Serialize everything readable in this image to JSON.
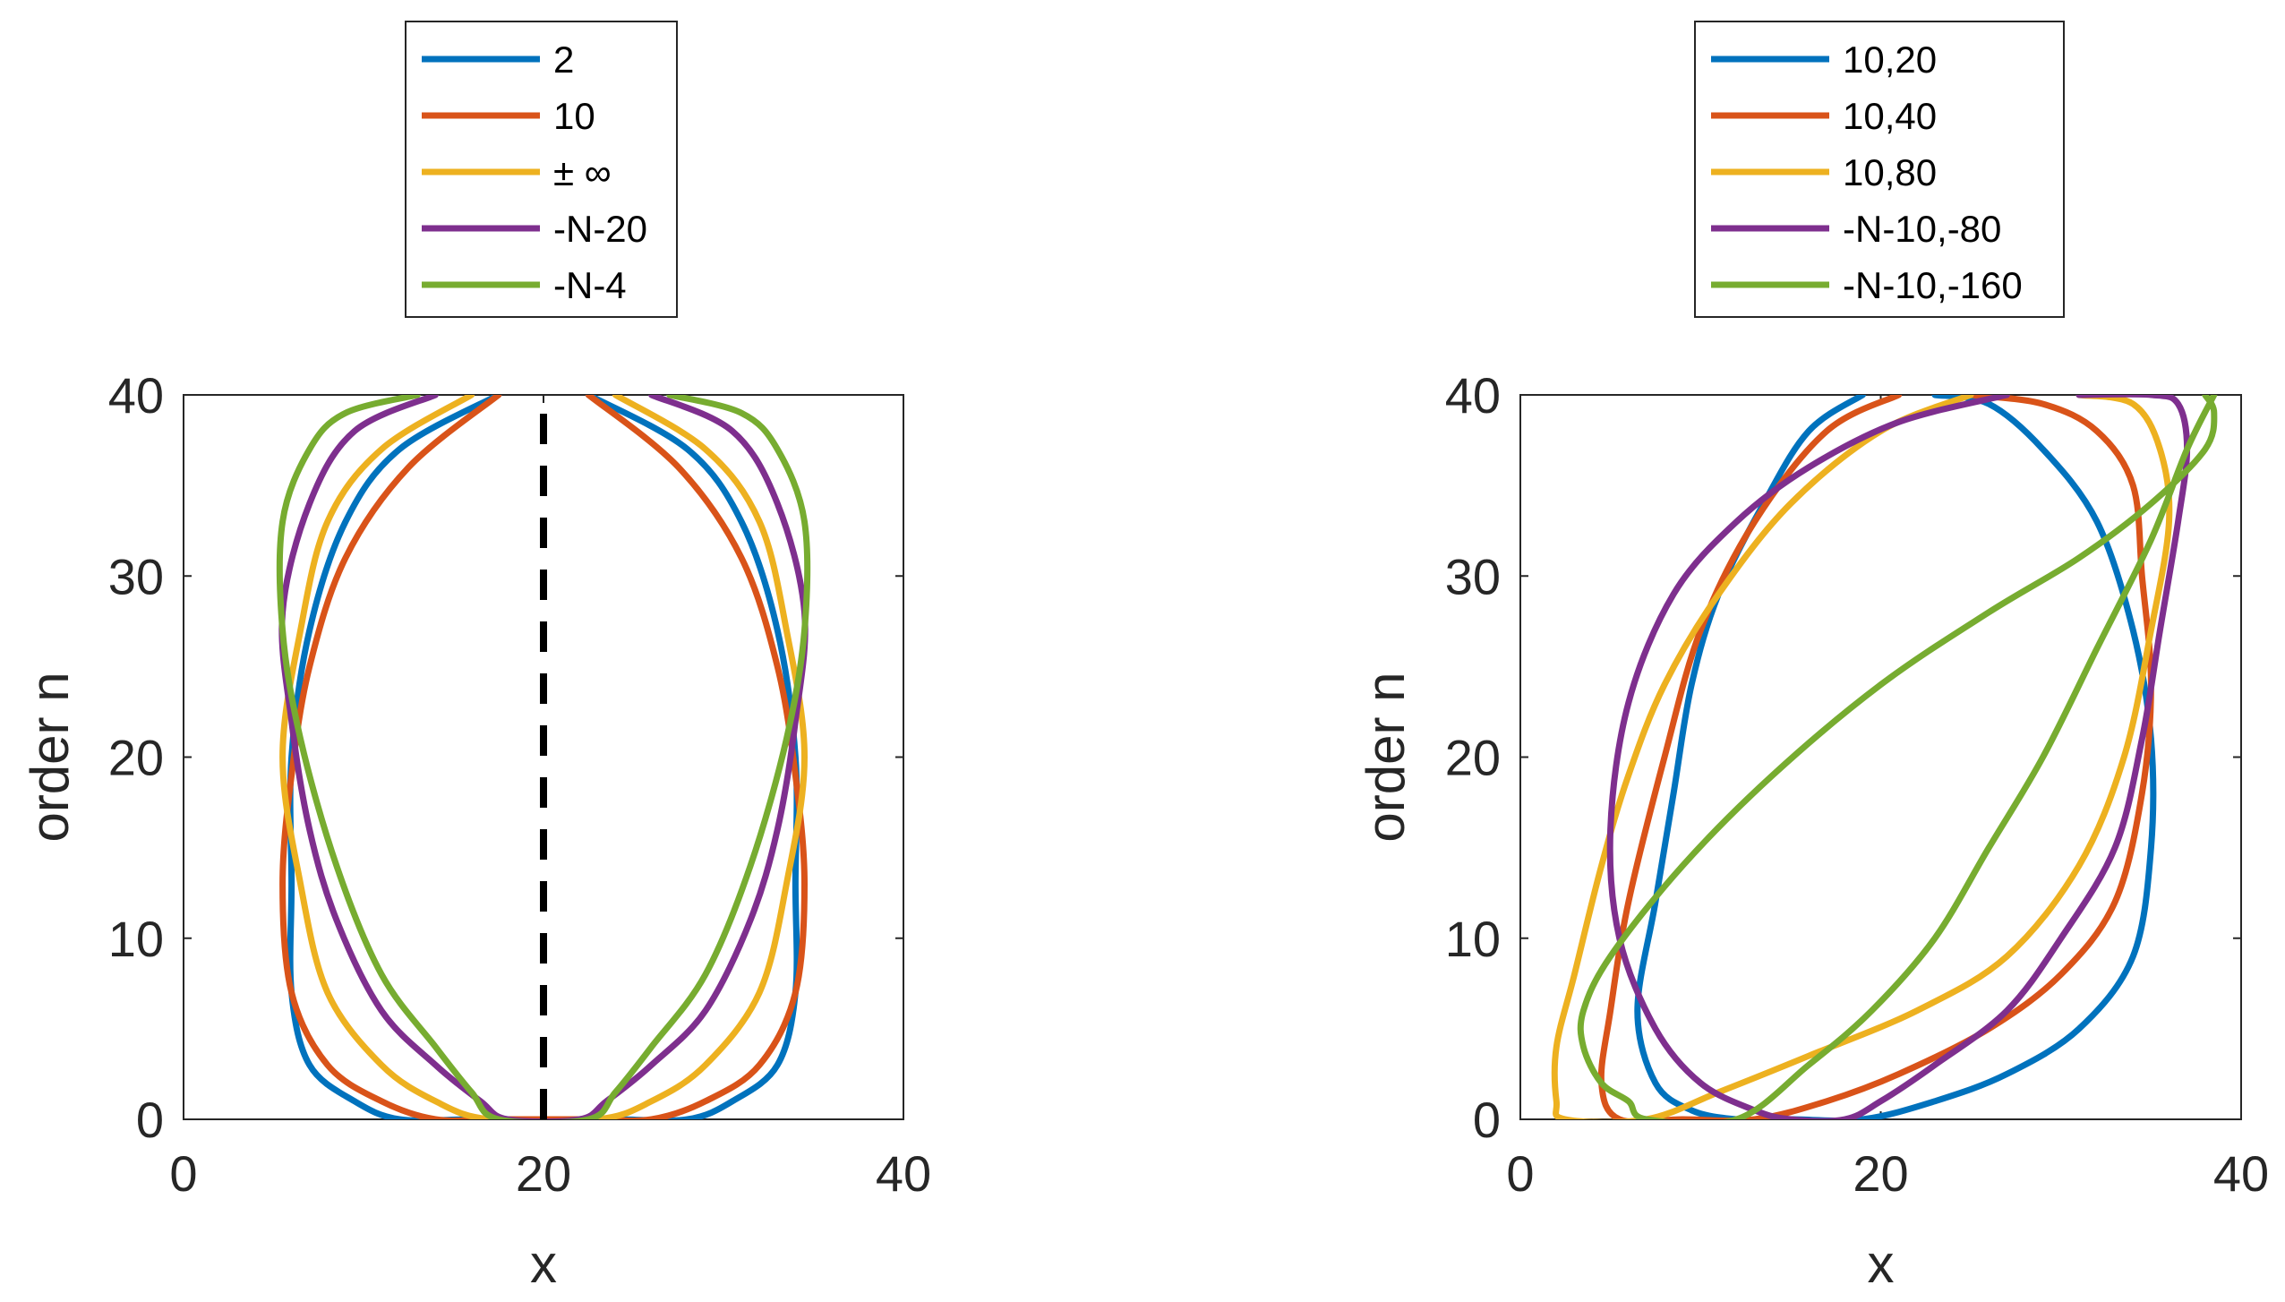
{
  "chart_data": [
    {
      "type": "line",
      "title": "",
      "xlabel": "x",
      "ylabel": "order n",
      "xlim": [
        0,
        40
      ],
      "ylim": [
        0,
        40
      ],
      "xticks": [
        "0",
        "20",
        "40"
      ],
      "yticks": [
        "0",
        "10",
        "20",
        "30",
        "40"
      ],
      "legend_position": "top-outside",
      "reference_line": {
        "style": "dashed",
        "color": "#000000",
        "x": [
          20,
          20
        ],
        "y": [
          0,
          40
        ]
      },
      "series": [
        {
          "name": "2",
          "color": "#0072BD",
          "points": [
            [
              17.5,
              40
            ],
            [
              12,
              37
            ],
            [
              9,
              33
            ],
            [
              7,
              27
            ],
            [
              6,
              20
            ],
            [
              6,
              13
            ],
            [
              6,
              7
            ],
            [
              7,
              3
            ],
            [
              9.5,
              1
            ],
            [
              12,
              0
            ],
            [
              16,
              0
            ],
            [
              20,
              0
            ],
            [
              24,
              0
            ],
            [
              28,
              0
            ],
            [
              30.5,
              1
            ],
            [
              33,
              3
            ],
            [
              34,
              7
            ],
            [
              34,
              13
            ],
            [
              34,
              20
            ],
            [
              33,
              27
            ],
            [
              31,
              33
            ],
            [
              28,
              37
            ],
            [
              22.5,
              40
            ]
          ]
        },
        {
          "name": "10",
          "color": "#D95319",
          "points": [
            [
              17.5,
              40
            ],
            [
              12.5,
              36
            ],
            [
              9,
              31
            ],
            [
              7,
              25
            ],
            [
              6,
              19
            ],
            [
              5.5,
              13
            ],
            [
              6,
              7
            ],
            [
              8,
              3
            ],
            [
              11,
              1
            ],
            [
              14,
              0
            ],
            [
              17.5,
              0
            ],
            [
              22.5,
              0
            ],
            [
              26,
              0
            ],
            [
              29,
              1
            ],
            [
              32,
              3
            ],
            [
              34,
              7
            ],
            [
              34.5,
              13
            ],
            [
              34,
              19
            ],
            [
              33,
              25
            ],
            [
              31,
              31
            ],
            [
              27.5,
              36
            ],
            [
              22.5,
              40
            ]
          ]
        },
        {
          "name": "± ∞",
          "color": "#EDB120",
          "points": [
            [
              16,
              40
            ],
            [
              11,
              37
            ],
            [
              8,
              33
            ],
            [
              6.5,
              27
            ],
            [
              5.5,
              20
            ],
            [
              6.5,
              13
            ],
            [
              8,
              7
            ],
            [
              11,
              3
            ],
            [
              14,
              1
            ],
            [
              17,
              0
            ],
            [
              23,
              0
            ],
            [
              26,
              1
            ],
            [
              29,
              3
            ],
            [
              32,
              7
            ],
            [
              33.5,
              13
            ],
            [
              34.5,
              20
            ],
            [
              33.5,
              27
            ],
            [
              32,
              33
            ],
            [
              29,
              37
            ],
            [
              24,
              40
            ]
          ]
        },
        {
          "name": "-N-20",
          "color": "#7E2F8E",
          "points": [
            [
              14,
              40
            ],
            [
              9.5,
              38
            ],
            [
              7,
              34
            ],
            [
              5.5,
              28
            ],
            [
              6,
              22
            ],
            [
              7,
              16
            ],
            [
              8.5,
              11
            ],
            [
              11,
              6
            ],
            [
              14,
              3
            ],
            [
              16.5,
              1
            ],
            [
              18,
              0
            ],
            [
              22,
              0
            ],
            [
              23.5,
              1
            ],
            [
              26,
              3
            ],
            [
              29,
              6
            ],
            [
              31.5,
              11
            ],
            [
              33,
              16
            ],
            [
              34,
              22
            ],
            [
              34.5,
              28
            ],
            [
              33,
              34
            ],
            [
              30.5,
              38
            ],
            [
              26,
              40
            ]
          ]
        },
        {
          "name": "-N-4",
          "color": "#77AC30",
          "points": [
            [
              13,
              40
            ],
            [
              9,
              39
            ],
            [
              7,
              37
            ],
            [
              5.5,
              33
            ],
            [
              5.5,
              27
            ],
            [
              6.5,
              21
            ],
            [
              8.5,
              14
            ],
            [
              11,
              8
            ],
            [
              14,
              4
            ],
            [
              16,
              1.5
            ],
            [
              17.5,
              0
            ],
            [
              22.5,
              0
            ],
            [
              24,
              1.5
            ],
            [
              26,
              4
            ],
            [
              29,
              8
            ],
            [
              31.5,
              14
            ],
            [
              33.5,
              21
            ],
            [
              34.5,
              27
            ],
            [
              34.5,
              33
            ],
            [
              33,
              37
            ],
            [
              31,
              39
            ],
            [
              27,
              40
            ]
          ]
        }
      ]
    },
    {
      "type": "line",
      "title": "",
      "xlabel": "x",
      "ylabel": "order n",
      "xlim": [
        0,
        40
      ],
      "ylim": [
        0,
        40
      ],
      "xticks": [
        "0",
        "20",
        "40"
      ],
      "yticks": [
        "0",
        "10",
        "20",
        "30",
        "40"
      ],
      "legend_position": "top-outside",
      "series": [
        {
          "name": "10,20",
          "color": "#0072BD",
          "points": [
            [
              19,
              40
            ],
            [
              16,
              38
            ],
            [
              13.5,
              34
            ],
            [
              11,
              29
            ],
            [
              9.5,
              24
            ],
            [
              8.5,
              18
            ],
            [
              7.5,
              12
            ],
            [
              6.5,
              6
            ],
            [
              7.5,
              2
            ],
            [
              9.5,
              0.5
            ],
            [
              12,
              0
            ],
            [
              15,
              0
            ],
            [
              19,
              0
            ],
            [
              23,
              1
            ],
            [
              27,
              2.5
            ],
            [
              31,
              5
            ],
            [
              34,
              9
            ],
            [
              35,
              15
            ],
            [
              35,
              21
            ],
            [
              34,
              27
            ],
            [
              32,
              33
            ],
            [
              29,
              37
            ],
            [
              26,
              39.5
            ],
            [
              23,
              40
            ]
          ]
        },
        {
          "name": "10,40",
          "color": "#D95319",
          "points": [
            [
              21,
              40
            ],
            [
              17,
              38
            ],
            [
              13,
              33
            ],
            [
              10,
              27
            ],
            [
              8,
              20
            ],
            [
              6,
              12
            ],
            [
              5,
              6
            ],
            [
              4.5,
              2
            ],
            [
              5.5,
              0
            ],
            [
              9,
              0
            ],
            [
              13,
              0
            ],
            [
              17,
              1
            ],
            [
              21,
              2.5
            ],
            [
              26,
              5
            ],
            [
              30,
              8
            ],
            [
              33,
              12
            ],
            [
              34.5,
              18
            ],
            [
              35,
              24
            ],
            [
              34.5,
              30
            ],
            [
              34,
              35
            ],
            [
              32,
              38
            ],
            [
              29,
              39.5
            ],
            [
              25,
              40
            ]
          ]
        },
        {
          "name": "10,80",
          "color": "#EDB120",
          "points": [
            [
              25,
              40
            ],
            [
              20,
              38
            ],
            [
              15,
              34
            ],
            [
              11,
              29
            ],
            [
              8,
              24
            ],
            [
              6,
              19
            ],
            [
              4.5,
              14
            ],
            [
              3,
              8
            ],
            [
              2,
              4
            ],
            [
              2,
              1
            ],
            [
              2.5,
              0
            ],
            [
              7,
              0
            ],
            [
              11,
              1.5
            ],
            [
              16,
              3.5
            ],
            [
              22,
              6
            ],
            [
              27,
              9
            ],
            [
              31,
              14
            ],
            [
              33.5,
              20
            ],
            [
              35,
              27
            ],
            [
              36,
              33
            ],
            [
              35.5,
              37
            ],
            [
              34,
              39.5
            ],
            [
              31,
              40
            ]
          ]
        },
        {
          "name": "-N-10,-80",
          "color": "#7E2F8E",
          "points": [
            [
              27,
              40
            ],
            [
              21,
              38.5
            ],
            [
              16,
              36
            ],
            [
              12,
              33
            ],
            [
              8.5,
              29
            ],
            [
              6,
              23
            ],
            [
              5,
              16
            ],
            [
              5.5,
              10
            ],
            [
              7.5,
              5
            ],
            [
              10,
              2
            ],
            [
              13,
              0.5
            ],
            [
              15,
              0
            ],
            [
              18,
              0
            ],
            [
              20,
              1
            ],
            [
              23,
              3
            ],
            [
              27,
              6
            ],
            [
              30,
              10
            ],
            [
              33,
              15
            ],
            [
              34.5,
              21
            ],
            [
              35.5,
              27
            ],
            [
              36.5,
              33
            ],
            [
              37,
              37
            ],
            [
              36.5,
              39.5
            ],
            [
              35,
              40
            ],
            [
              31,
              40
            ]
          ]
        },
        {
          "name": "-N-10,-160",
          "color": "#77AC30",
          "points": [
            [
              38,
              40
            ],
            [
              38.5,
              39
            ],
            [
              38,
              37
            ],
            [
              35,
              34
            ],
            [
              31,
              31
            ],
            [
              26,
              28
            ],
            [
              20,
              24
            ],
            [
              14,
              19
            ],
            [
              9,
              14
            ],
            [
              5,
              9
            ],
            [
              3.5,
              6
            ],
            [
              3.5,
              4
            ],
            [
              4.5,
              2
            ],
            [
              6,
              1
            ],
            [
              7,
              0
            ],
            [
              12,
              0
            ],
            [
              16,
              3
            ],
            [
              19.5,
              6
            ],
            [
              23,
              10
            ],
            [
              26,
              15
            ],
            [
              29,
              20
            ],
            [
              32,
              26
            ],
            [
              35,
              32
            ],
            [
              37,
              37
            ],
            [
              38.5,
              40
            ]
          ]
        }
      ]
    }
  ]
}
